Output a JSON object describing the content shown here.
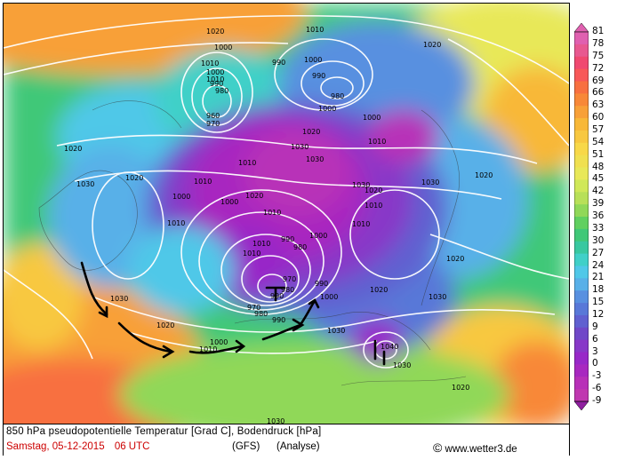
{
  "map": {
    "variable": "850 hPa pseudopotentielle Temperatur [Grad C], Bodendruck [hPa]",
    "date_label": "Samstag, 05-12-2015",
    "time_label": "06 UTC",
    "model_label": "(GFS)",
    "analysis_label": "(Analyse)",
    "copyright_symbol": "©",
    "source": "www.wetter3.de",
    "pressure_labels": [
      "1020",
      "1010",
      "990",
      "1000",
      "1000",
      "1010",
      "990",
      "980",
      "1020",
      "1010",
      "1000",
      "990",
      "980",
      "960",
      "970",
      "1000",
      "1000",
      "1010",
      "1020",
      "1030",
      "1030",
      "1020",
      "1020",
      "1030",
      "1010",
      "1030",
      "1020",
      "1000",
      "1010",
      "1020",
      "1030",
      "1010",
      "1000",
      "1020",
      "1010",
      "1000",
      "1010",
      "990",
      "1010",
      "1010",
      "980",
      "1010",
      "1020",
      "970",
      "980",
      "990",
      "1000",
      "980",
      "970",
      "990",
      "990",
      "1030",
      "1020",
      "1030",
      "1020",
      "1000",
      "1010",
      "1040",
      "1030",
      "1020",
      "1030",
      "1030"
    ]
  },
  "legend": {
    "values": [
      "81",
      "78",
      "75",
      "72",
      "69",
      "66",
      "63",
      "60",
      "57",
      "54",
      "51",
      "48",
      "45",
      "42",
      "39",
      "36",
      "33",
      "30",
      "27",
      "24",
      "21",
      "18",
      "15",
      "12",
      "9",
      "6",
      "3",
      "0",
      "-3",
      "-6",
      "-9"
    ],
    "colors": [
      "#e060b0",
      "#e85890",
      "#f04870",
      "#f85858",
      "#f87040",
      "#f88838",
      "#f8a038",
      "#f8b838",
      "#f8c840",
      "#f8d848",
      "#f0e050",
      "#e8e858",
      "#d0e858",
      "#b8e058",
      "#90d858",
      "#60d060",
      "#40c878",
      "#38c8a0",
      "#40d0c8",
      "#50c8e8",
      "#58b0e8",
      "#5890e0",
      "#5878d8",
      "#6060d0",
      "#7048c8",
      "#8838c8",
      "#9828c8",
      "#a828c0",
      "#b830b8",
      "#c038b0",
      "#9020a0"
    ]
  }
}
